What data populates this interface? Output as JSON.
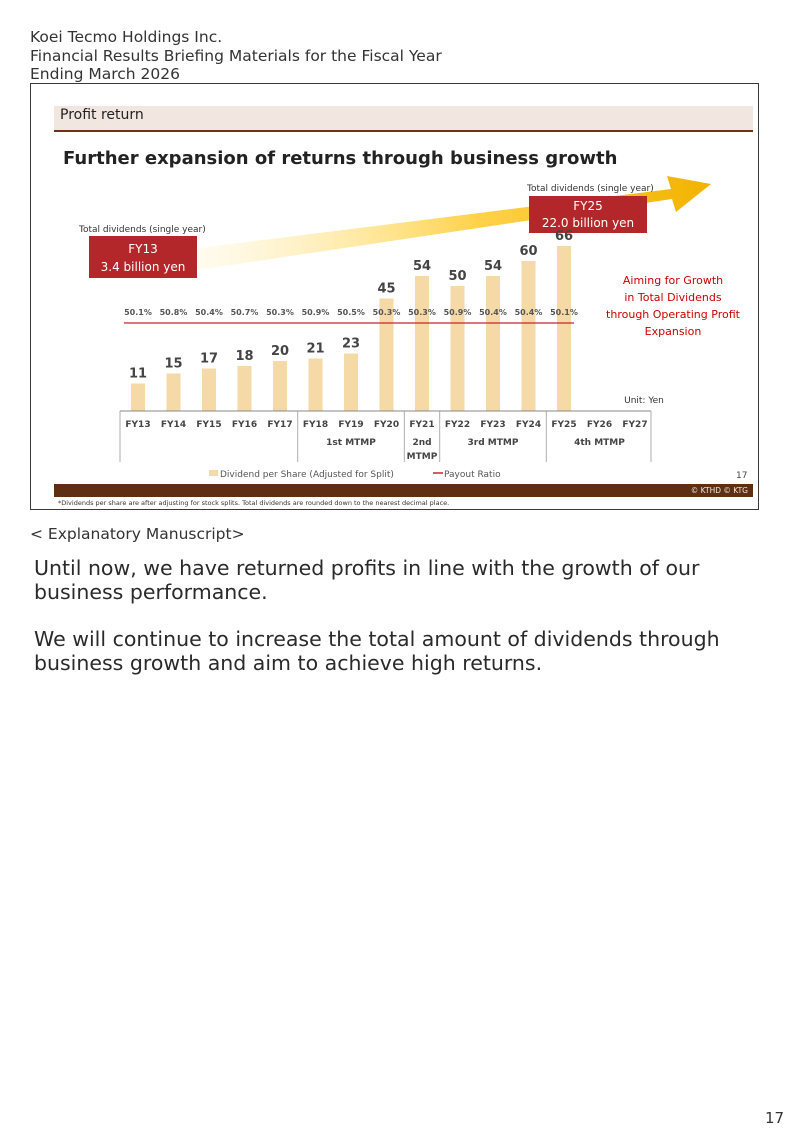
{
  "header": {
    "company": "Koei Tecmo Holdings Inc.",
    "line2": "Financial Results Briefing Materials for the Fiscal Year",
    "line3": "Ending March 2026"
  },
  "slide": {
    "section": "Profit return",
    "title": "Further expansion of returns through business growth",
    "callout_left": {
      "caption": "Total dividends (single year)",
      "year": "FY13",
      "amount": "3.4 billion yen"
    },
    "callout_right": {
      "caption": "Total dividends (single year)",
      "year": "FY25",
      "amount": "22.0 billion yen"
    },
    "aim": [
      "Aiming for Growth",
      "in Total Dividends",
      "through Operating Profit",
      "Expansion"
    ],
    "unit": "Unit: Yen",
    "page": "17",
    "copyright": "© KTHD © KTG",
    "footnote": "*Dividends per share are after adjusting for stock splits. Total dividends are rounded down to the nearest decimal place.",
    "colors": {
      "bar": "#f5d9a6",
      "payout_line": "#c0282d",
      "callout_box": "#b3262a",
      "accent_brown": "#5e2f12",
      "aim_text": "#cc0000",
      "arrow": "#f2b300"
    }
  },
  "chart_data": {
    "type": "bar",
    "categories": [
      "FY13",
      "FY14",
      "FY15",
      "FY16",
      "FY17",
      "FY18",
      "FY19",
      "FY20",
      "FY21",
      "FY22",
      "FY23",
      "FY24",
      "FY25",
      "FY26",
      "FY27"
    ],
    "series": [
      {
        "name": "Dividend per Share (Adjusted for Split)",
        "values": [
          11,
          15,
          17,
          18,
          20,
          21,
          23,
          45,
          54,
          50,
          54,
          60,
          66,
          null,
          null
        ],
        "labels": [
          "11",
          "15",
          "17",
          "18",
          "20",
          "21",
          "23",
          "45",
          "54",
          "50",
          "54",
          "60",
          "66",
          "",
          ""
        ]
      },
      {
        "name": "Payout Ratio",
        "values": [
          50.1,
          50.8,
          50.4,
          50.7,
          50.3,
          50.9,
          50.5,
          50.3,
          50.3,
          50.9,
          50.4,
          50.4,
          50.1,
          null,
          null
        ],
        "labels": [
          "50.1%",
          "50.8%",
          "50.4%",
          "50.7%",
          "50.3%",
          "50.9%",
          "50.5%",
          "50.3%",
          "50.3%",
          "50.9%",
          "50.4%",
          "50.4%",
          "50.1%",
          "",
          ""
        ]
      }
    ],
    "groups": [
      {
        "label": "1st MTMP",
        "categories": [
          "FY18",
          "FY19",
          "FY20"
        ]
      },
      {
        "label": "2nd MTMP",
        "categories": [
          "FY21"
        ]
      },
      {
        "label": "3rd MTMP",
        "categories": [
          "FY22",
          "FY23",
          "FY24"
        ]
      },
      {
        "label": "4th MTMP",
        "categories": [
          "FY25",
          "FY26",
          "FY27"
        ]
      }
    ],
    "ylim": [
      0,
      66
    ],
    "legend": "bottom"
  },
  "manuscript": {
    "heading": "< Explanatory Manuscript>",
    "para1": "Until now, we have returned profits in line with the growth of our business performance.",
    "para2": "We will continue to increase the total amount of dividends through business growth and aim to achieve high returns."
  },
  "page_number": "17"
}
